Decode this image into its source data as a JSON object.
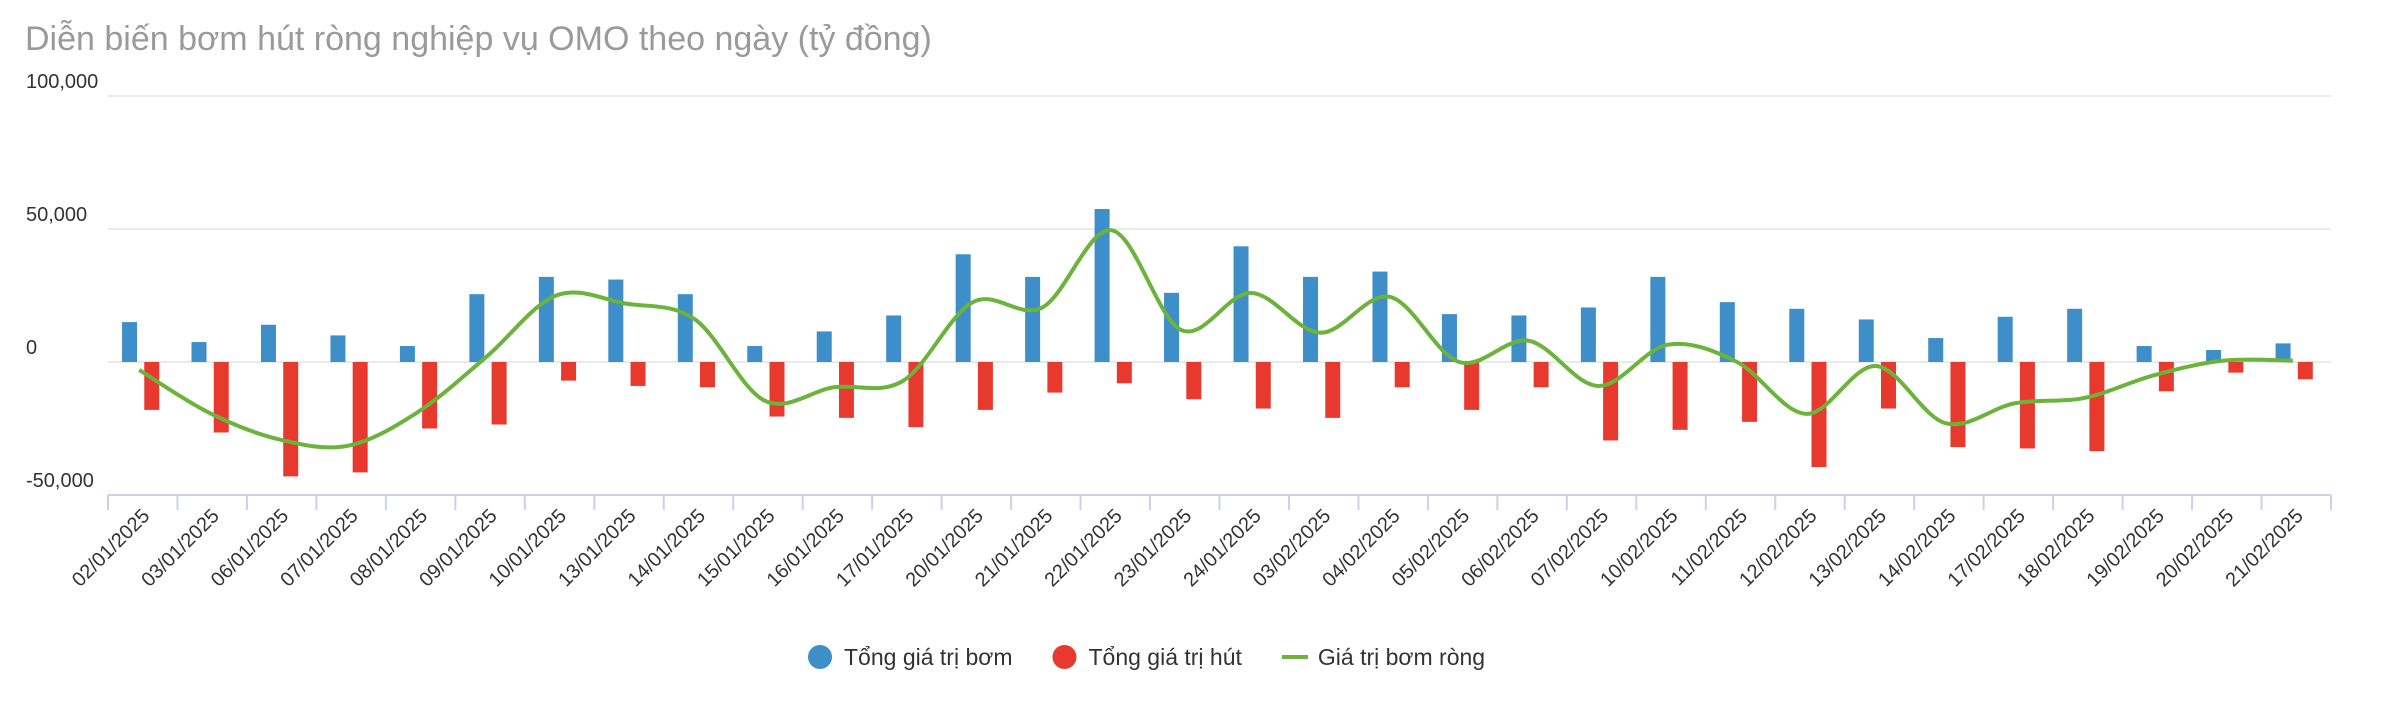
{
  "chart_data": {
    "type": "bar",
    "title": "Diễn biến bơm hút ròng nghiệp vụ OMO theo ngày (tỷ đồng)",
    "categories": [
      "02/01/2025",
      "03/01/2025",
      "06/01/2025",
      "07/01/2025",
      "08/01/2025",
      "09/01/2025",
      "10/01/2025",
      "13/01/2025",
      "14/01/2025",
      "15/01/2025",
      "16/01/2025",
      "17/01/2025",
      "20/01/2025",
      "21/01/2025",
      "22/01/2025",
      "23/01/2025",
      "24/01/2025",
      "03/02/2025",
      "04/02/2025",
      "05/02/2025",
      "06/02/2025",
      "07/02/2025",
      "10/02/2025",
      "11/02/2025",
      "12/02/2025",
      "13/02/2025",
      "14/02/2025",
      "17/02/2025",
      "18/02/2025",
      "19/02/2025",
      "20/02/2025",
      "21/02/2025"
    ],
    "series": [
      {
        "name": "Tổng giá trị bơm",
        "color": "#3d8ec9",
        "type": "bar",
        "values": [
          15000,
          7500,
          14000,
          10000,
          6000,
          25500,
          32000,
          31000,
          25500,
          6000,
          11500,
          17500,
          40500,
          32000,
          57500,
          26000,
          43500,
          32000,
          34000,
          18000,
          17500,
          20500,
          32000,
          22500,
          20000,
          16000,
          9000,
          17000,
          20000,
          6000,
          4500,
          7000
        ]
      },
      {
        "name": "Tổng giá trị hút",
        "color": "#e8392f",
        "type": "bar",
        "values": [
          -18000,
          -26500,
          -43000,
          -41500,
          -25000,
          -23500,
          -7000,
          -9000,
          -9500,
          -20500,
          -21000,
          -24500,
          -18000,
          -11500,
          -8000,
          -14000,
          -17500,
          -21000,
          -9500,
          -18000,
          -9500,
          -29500,
          -25500,
          -22500,
          -39500,
          -17500,
          -32000,
          -32500,
          -33500,
          -11000,
          -4000,
          -6500
        ]
      },
      {
        "name": "Giá trị bơm ròng",
        "color": "#6bb33a",
        "type": "line",
        "values": [
          -3000,
          -19000,
          -29000,
          -31500,
          -19000,
          2000,
          25000,
          22000,
          16000,
          -14500,
          -9500,
          -7000,
          22500,
          20500,
          49500,
          12000,
          26000,
          11000,
          24500,
          0,
          8000,
          -9000,
          6500,
          0,
          -19500,
          -1500,
          -23000,
          -15500,
          -13500,
          -5000,
          500,
          500
        ]
      }
    ],
    "ylim": [
      -50000,
      100000
    ],
    "yticks": [
      {
        "value": -50000,
        "label": "-50,000"
      },
      0,
      {
        "value": 50000,
        "label": "50,000"
      },
      {
        "value": 100000,
        "label": "100,000"
      }
    ],
    "grid": true
  }
}
